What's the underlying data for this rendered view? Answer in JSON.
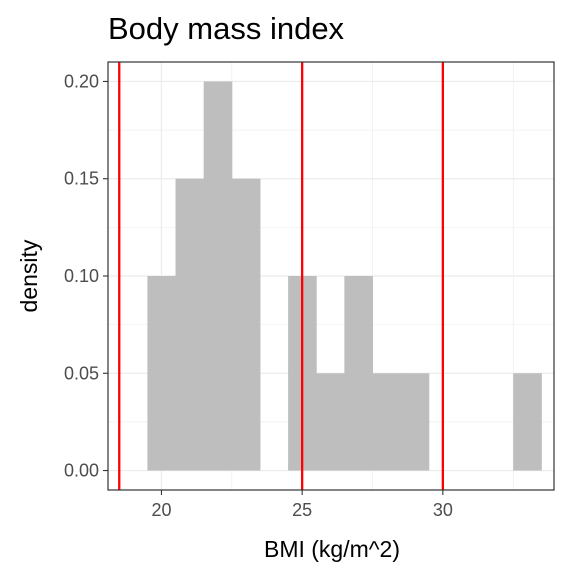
{
  "chart_data": {
    "type": "bar",
    "title": "Body mass index",
    "xlabel": "BMI (kg/m^2)",
    "ylabel": "density",
    "xlim": [
      18.1,
      33.95
    ],
    "ylim": [
      -0.01,
      0.21
    ],
    "x_ticks": [
      {
        "value": 20,
        "label": "20"
      },
      {
        "value": 25,
        "label": "25"
      },
      {
        "value": 30,
        "label": "30"
      }
    ],
    "y_ticks": [
      {
        "value": 0.0,
        "label": "0.00"
      },
      {
        "value": 0.05,
        "label": "0.05"
      },
      {
        "value": 0.1,
        "label": "0.10"
      },
      {
        "value": 0.15,
        "label": "0.15"
      },
      {
        "value": 0.2,
        "label": "0.20"
      }
    ],
    "grid": true,
    "bin_width": 1,
    "bins": [
      {
        "center": 20,
        "density": 0.1
      },
      {
        "center": 21,
        "density": 0.15
      },
      {
        "center": 22,
        "density": 0.2
      },
      {
        "center": 23,
        "density": 0.15
      },
      {
        "center": 24,
        "density": 0.0
      },
      {
        "center": 25,
        "density": 0.1
      },
      {
        "center": 26,
        "density": 0.05
      },
      {
        "center": 27,
        "density": 0.1
      },
      {
        "center": 28,
        "density": 0.05
      },
      {
        "center": 29,
        "density": 0.05
      },
      {
        "center": 30,
        "density": 0.0
      },
      {
        "center": 31,
        "density": 0.0
      },
      {
        "center": 32,
        "density": 0.0
      },
      {
        "center": 33,
        "density": 0.05
      }
    ],
    "reference_lines": [
      18.5,
      25,
      30
    ],
    "colors": {
      "bars": "#bebebe",
      "reference_lines": "#ff0000",
      "grid": "#ebebeb",
      "panel_border": "#333333"
    }
  }
}
